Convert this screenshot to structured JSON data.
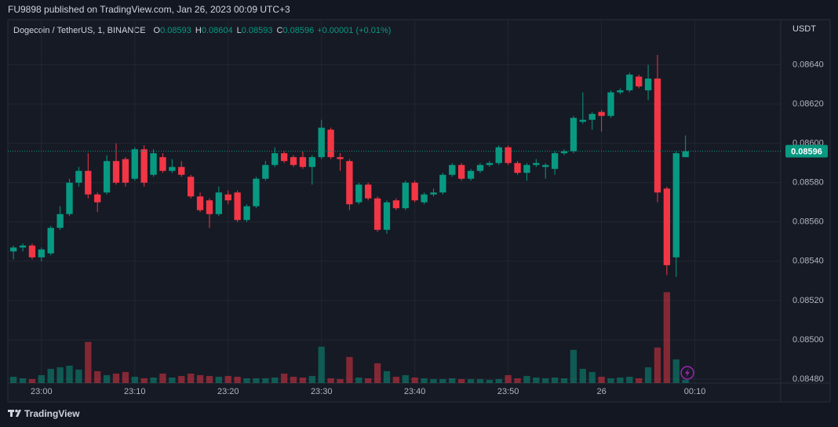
{
  "header": {
    "published": "FU9898 published on TradingView.com, Jan 26, 2023 00:09 UTC+3"
  },
  "footer": {
    "brand": "TradingView"
  },
  "chart_data": {
    "type": "candlestick",
    "symbol": "Dogecoin / TetherUS, 1, BINANCE",
    "ohlc_legend": [
      {
        "key": "O",
        "value": "0.08593"
      },
      {
        "key": "H",
        "value": "0.08604"
      },
      {
        "key": "L",
        "value": "0.08593"
      },
      {
        "key": "C",
        "value": "0.08596"
      }
    ],
    "change": "+0.00001 (+0.01%)",
    "currency": "USDT",
    "up_color": "#089981",
    "down_color": "#f23645",
    "open": [
      0.08545,
      0.08547,
      0.08548,
      0.08542,
      0.08544,
      0.08557,
      0.08564,
      0.0858,
      0.08586,
      0.08574,
      0.08575,
      0.08591,
      0.08592,
      0.08582,
      0.08597,
      0.08584,
      0.08593,
      0.08586,
      0.08588,
      0.08583,
      0.08573,
      0.08571,
      0.08564,
      0.08574,
      0.08575,
      0.08561,
      0.08568,
      0.08582,
      0.08589,
      0.08595,
      0.08593,
      0.08593,
      0.08588,
      0.08593,
      0.08607,
      0.08593,
      0.08591,
      0.0857,
      0.08579,
      0.08572,
      0.08556,
      0.08571,
      0.08567,
      0.0858,
      0.0857,
      0.08574,
      0.08575,
      0.08584,
      0.08589,
      0.08582,
      0.08586,
      0.08589,
      0.0859,
      0.08598,
      0.0859,
      0.08585,
      0.08589,
      0.08588,
      0.08587,
      0.08595,
      0.08596,
      0.08611,
      0.08612,
      0.08616,
      0.08614,
      0.08626,
      0.08627,
      0.08634,
      0.08627,
      0.08633,
      0.08577,
      0.08542,
      0.08593
    ],
    "high": [
      0.08548,
      0.08549,
      0.08549,
      0.08547,
      0.08558,
      0.08568,
      0.08582,
      0.08588,
      0.08595,
      0.08575,
      0.08594,
      0.086,
      0.08593,
      0.08598,
      0.08599,
      0.08597,
      0.08595,
      0.08592,
      0.08591,
      0.08584,
      0.08575,
      0.08572,
      0.08578,
      0.08576,
      0.08576,
      0.08569,
      0.08583,
      0.08591,
      0.08598,
      0.08596,
      0.08594,
      0.08596,
      0.08594,
      0.08612,
      0.08608,
      0.08595,
      0.08592,
      0.0858,
      0.0858,
      0.08573,
      0.08571,
      0.08572,
      0.08581,
      0.08581,
      0.08575,
      0.08577,
      0.08585,
      0.0859,
      0.0859,
      0.08587,
      0.0859,
      0.08591,
      0.08599,
      0.08599,
      0.08591,
      0.0859,
      0.08592,
      0.0859,
      0.08596,
      0.08597,
      0.08614,
      0.08626,
      0.08616,
      0.08617,
      0.08627,
      0.08628,
      0.08636,
      0.08635,
      0.0864,
      0.08645,
      0.08578,
      0.08596,
      0.08604
    ],
    "low": [
      0.08541,
      0.08545,
      0.08541,
      0.0854,
      0.08543,
      0.08556,
      0.08563,
      0.08578,
      0.08572,
      0.08565,
      0.08574,
      0.08579,
      0.08578,
      0.08581,
      0.08578,
      0.08583,
      0.08585,
      0.08585,
      0.08583,
      0.08572,
      0.08565,
      0.08557,
      0.08563,
      0.08569,
      0.0856,
      0.0856,
      0.08567,
      0.08581,
      0.08588,
      0.0859,
      0.08588,
      0.08587,
      0.08579,
      0.08592,
      0.08592,
      0.08586,
      0.08566,
      0.08569,
      0.08571,
      0.08555,
      0.08554,
      0.08566,
      0.08566,
      0.0857,
      0.08569,
      0.08573,
      0.08574,
      0.08583,
      0.08581,
      0.08581,
      0.08585,
      0.08588,
      0.08589,
      0.08589,
      0.08584,
      0.08581,
      0.08588,
      0.08582,
      0.08584,
      0.08594,
      0.08595,
      0.0861,
      0.08607,
      0.08606,
      0.08613,
      0.08625,
      0.08626,
      0.08628,
      0.08622,
      0.0857,
      0.08533,
      0.08532,
      0.08593
    ],
    "close": [
      0.08547,
      0.08548,
      0.08542,
      0.08546,
      0.08557,
      0.08564,
      0.0858,
      0.08586,
      0.08574,
      0.0857,
      0.08591,
      0.0858,
      0.0858,
      0.08597,
      0.0858,
      0.08595,
      0.08586,
      0.08588,
      0.08584,
      0.08573,
      0.08566,
      0.08564,
      0.08575,
      0.08571,
      0.08561,
      0.08568,
      0.08582,
      0.08589,
      0.08595,
      0.08591,
      0.08589,
      0.08588,
      0.08593,
      0.08608,
      0.08593,
      0.08592,
      0.08569,
      0.08579,
      0.08572,
      0.08556,
      0.0857,
      0.08567,
      0.0858,
      0.08571,
      0.08574,
      0.08575,
      0.08584,
      0.08589,
      0.08582,
      0.08586,
      0.08589,
      0.0859,
      0.08598,
      0.0859,
      0.08585,
      0.08589,
      0.0859,
      0.08589,
      0.08595,
      0.08596,
      0.08613,
      0.08612,
      0.08615,
      0.08614,
      0.08626,
      0.08627,
      0.08635,
      0.08629,
      0.08633,
      0.08575,
      0.08538,
      0.08595,
      0.08596
    ],
    "volume": [
      8,
      6,
      5,
      10,
      18,
      20,
      22,
      17,
      52,
      15,
      10,
      12,
      14,
      8,
      6,
      7,
      12,
      7,
      9,
      12,
      10,
      9,
      8,
      9,
      8,
      6,
      6,
      6,
      7,
      12,
      8,
      7,
      9,
      46,
      6,
      5,
      33,
      7,
      6,
      25,
      15,
      8,
      10,
      7,
      6,
      5,
      5,
      6,
      5,
      5,
      5,
      4,
      5,
      10,
      6,
      9,
      7,
      6,
      7,
      6,
      42,
      18,
      14,
      8,
      6,
      7,
      8,
      6,
      20,
      45,
      115,
      30,
      4
    ],
    "xlim": [
      -0.6,
      82.2
    ],
    "xticks": [
      {
        "value": 3,
        "label": "23:00"
      },
      {
        "value": 13,
        "label": "23:10"
      },
      {
        "value": 23,
        "label": "23:20"
      },
      {
        "value": 33,
        "label": "23:30"
      },
      {
        "value": 43,
        "label": "23:40"
      },
      {
        "value": 53,
        "label": "23:50"
      },
      {
        "value": 63,
        "label": "26"
      },
      {
        "value": 73,
        "label": "00:10"
      }
    ],
    "ylim": [
      0.08478,
      0.08663
    ],
    "yticks": [
      {
        "value": 0.0848,
        "label": "0.08480"
      },
      {
        "value": 0.085,
        "label": "0.08500"
      },
      {
        "value": 0.0852,
        "label": "0.08520"
      },
      {
        "value": 0.0854,
        "label": "0.08540"
      },
      {
        "value": 0.0856,
        "label": "0.08560"
      },
      {
        "value": 0.0858,
        "label": "0.08580"
      },
      {
        "value": 0.086,
        "label": "0.08600"
      },
      {
        "value": 0.0862,
        "label": "0.08620"
      },
      {
        "value": 0.0864,
        "label": "0.08640"
      }
    ],
    "grid": true
  }
}
